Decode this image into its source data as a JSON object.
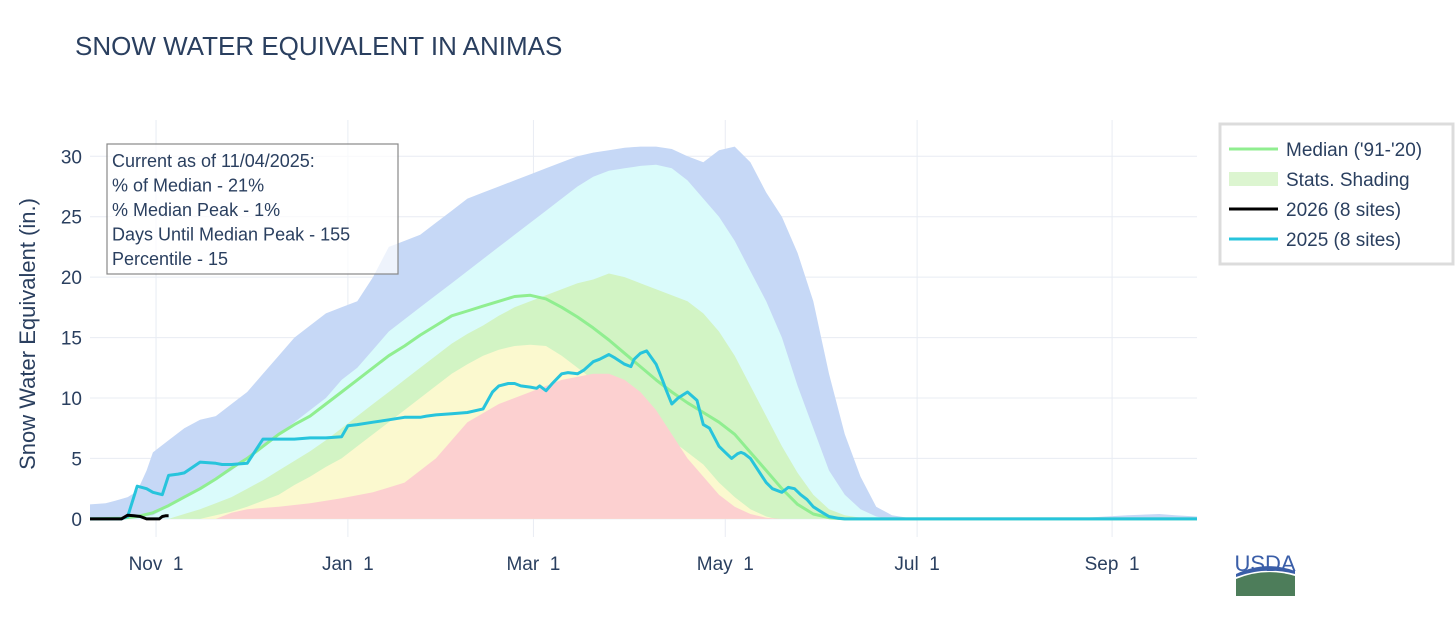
{
  "chart_data": {
    "type": "area",
    "title": "SNOW WATER EQUIVALENT IN ANIMAS",
    "ylabel": "Snow Water Equivalent (in.)",
    "xlabel": "",
    "x_unit": "day of water year (Oct 1 = 0)",
    "xlim": [
      10,
      362
    ],
    "ylim": [
      -1.5,
      33
    ],
    "x_ticks": [
      {
        "label": "Nov  1",
        "x": 31
      },
      {
        "label": "Jan  1",
        "x": 92
      },
      {
        "label": "Mar  1",
        "x": 151
      },
      {
        "label": "May  1",
        "x": 212
      },
      {
        "label": "Jul  1",
        "x": 273
      },
      {
        "label": "Sep  1",
        "x": 335
      }
    ],
    "y_ticks": [
      0,
      5,
      10,
      15,
      20,
      25,
      30
    ],
    "annotation": [
      "Current as of 11/04/2025:",
      "% of Median - 21%",
      "% Median Peak - 1%",
      "Days Until Median Peak - 155",
      "Percentile - 15"
    ],
    "legend": [
      {
        "label": "Median ('91-'20)",
        "kind": "line",
        "color": "#90ee90"
      },
      {
        "label": "Stats. Shading",
        "kind": "fill",
        "color": "#dcf5d0"
      },
      {
        "label": "2026 (8 sites)",
        "kind": "line",
        "color": "#000000"
      },
      {
        "label": "2025 (8 sites)",
        "kind": "line",
        "color": "#27c4dc"
      }
    ],
    "logo_text": "USDA",
    "colors": {
      "band_blue": "#c6d8f6",
      "band_cyan": "#dafbfb",
      "band_green": "#d2f4c4",
      "band_yellow": "#fbf9cf",
      "band_red": "#fcd0d0",
      "grid": "#e8ecf3",
      "axis_text": "#2a3f5f",
      "title": "#2a3f5f",
      "logo_blue": "#3a5ea8",
      "logo_green": "#4d7d5a"
    },
    "series": {
      "max": {
        "x": [
          10,
          15,
          18,
          22,
          25,
          28,
          30,
          35,
          40,
          45,
          50,
          55,
          60,
          65,
          70,
          75,
          80,
          85,
          90,
          95,
          100,
          105,
          110,
          115,
          120,
          125,
          130,
          135,
          140,
          145,
          150,
          155,
          160,
          165,
          170,
          175,
          180,
          185,
          190,
          195,
          200,
          205,
          210,
          215,
          220,
          225,
          230,
          235,
          240,
          245,
          250,
          255,
          260,
          265,
          270,
          275,
          280,
          290,
          300,
          320,
          340,
          350,
          355,
          362
        ],
        "y": [
          1.2,
          1.3,
          1.5,
          1.8,
          2.3,
          4.0,
          5.5,
          6.5,
          7.5,
          8.2,
          8.5,
          9.5,
          10.5,
          12.0,
          13.5,
          15.0,
          16.0,
          17.0,
          17.5,
          18.0,
          20.0,
          22.5,
          23.0,
          23.5,
          24.5,
          25.5,
          26.5,
          27.0,
          27.5,
          28.0,
          28.5,
          29.0,
          29.5,
          30.0,
          30.3,
          30.5,
          30.7,
          30.8,
          30.8,
          30.6,
          30.0,
          29.5,
          30.5,
          30.8,
          29.5,
          27.0,
          25.0,
          22.0,
          18.0,
          12.0,
          7.0,
          3.5,
          1.0,
          0.3,
          0.1,
          0.05,
          0,
          0,
          0,
          0,
          0.3,
          0.4,
          0.3,
          0.2
        ]
      },
      "p90": {
        "x": [
          10,
          25,
          30,
          35,
          40,
          45,
          50,
          55,
          60,
          65,
          70,
          75,
          80,
          85,
          90,
          95,
          100,
          105,
          110,
          115,
          120,
          125,
          130,
          135,
          140,
          145,
          150,
          155,
          160,
          165,
          170,
          175,
          180,
          185,
          190,
          195,
          200,
          205,
          210,
          215,
          220,
          225,
          230,
          235,
          240,
          245,
          250,
          255,
          260,
          262,
          265,
          270,
          280,
          362
        ],
        "y": [
          0,
          0.1,
          0.3,
          1.0,
          1.8,
          2.5,
          3.2,
          4.0,
          5.0,
          6.0,
          7.0,
          8.0,
          9.0,
          10.0,
          11.5,
          12.5,
          14.0,
          15.5,
          16.5,
          17.5,
          18.5,
          19.5,
          20.5,
          21.5,
          22.5,
          23.5,
          24.5,
          25.5,
          26.5,
          27.5,
          28.3,
          28.8,
          29.0,
          29.2,
          29.3,
          29.0,
          28.0,
          26.5,
          25.0,
          23.0,
          20.5,
          18.0,
          15.0,
          11.0,
          7.5,
          4.0,
          2.0,
          0.8,
          0.2,
          0.1,
          0,
          0,
          0,
          0
        ]
      },
      "p70": {
        "x": [
          10,
          35,
          40,
          45,
          50,
          55,
          60,
          65,
          70,
          75,
          80,
          85,
          90,
          95,
          100,
          105,
          110,
          115,
          120,
          125,
          130,
          135,
          140,
          145,
          150,
          155,
          160,
          165,
          170,
          175,
          180,
          185,
          190,
          195,
          200,
          205,
          210,
          215,
          220,
          225,
          230,
          235,
          240,
          245,
          250,
          255,
          258,
          362
        ],
        "y": [
          0,
          0,
          0.4,
          0.8,
          1.3,
          1.8,
          2.5,
          3.2,
          4.0,
          4.8,
          5.6,
          6.5,
          7.5,
          8.5,
          9.5,
          10.5,
          11.5,
          12.5,
          13.5,
          14.5,
          15.3,
          16.0,
          16.8,
          17.5,
          18.0,
          18.5,
          19.0,
          19.5,
          19.8,
          20.3,
          20.0,
          19.5,
          19.0,
          18.5,
          18.0,
          17.0,
          15.5,
          13.5,
          11.0,
          8.5,
          6.0,
          3.8,
          2.0,
          0.8,
          0.3,
          0.1,
          0,
          0
        ]
      },
      "median": {
        "x": [
          10,
          20,
          25,
          30,
          35,
          40,
          45,
          50,
          55,
          60,
          65,
          70,
          75,
          80,
          85,
          90,
          95,
          100,
          105,
          110,
          115,
          120,
          125,
          130,
          135,
          140,
          145,
          150,
          155,
          160,
          165,
          170,
          175,
          180,
          185,
          190,
          195,
          200,
          205,
          210,
          215,
          220,
          225,
          230,
          235,
          240,
          245,
          250,
          255,
          362
        ],
        "y": [
          0,
          0.05,
          0.2,
          0.5,
          1.1,
          1.8,
          2.5,
          3.3,
          4.2,
          5.0,
          6.0,
          7.0,
          7.8,
          8.5,
          9.5,
          10.5,
          11.5,
          12.5,
          13.5,
          14.3,
          15.2,
          16.0,
          16.8,
          17.2,
          17.6,
          18.0,
          18.4,
          18.5,
          18.2,
          17.5,
          16.7,
          15.8,
          14.8,
          13.7,
          12.6,
          11.5,
          10.5,
          9.6,
          8.8,
          8.0,
          7.0,
          5.5,
          4.0,
          2.5,
          1.2,
          0.4,
          0.1,
          0,
          0,
          0
        ]
      },
      "p30": {
        "x": [
          10,
          45,
          50,
          55,
          60,
          65,
          70,
          75,
          80,
          85,
          90,
          95,
          100,
          105,
          110,
          115,
          120,
          125,
          130,
          135,
          140,
          145,
          150,
          155,
          160,
          165,
          170,
          175,
          180,
          185,
          190,
          195,
          200,
          205,
          210,
          215,
          220,
          225,
          228,
          362
        ],
        "y": [
          0,
          0,
          0.3,
          0.6,
          1.0,
          1.5,
          2.0,
          2.8,
          3.5,
          4.3,
          5.0,
          6.0,
          7.0,
          8.0,
          9.0,
          10.0,
          11.0,
          12.0,
          12.8,
          13.5,
          14.0,
          14.3,
          14.4,
          14.3,
          13.5,
          12.5,
          11.5,
          10.5,
          9.5,
          8.5,
          7.5,
          6.5,
          5.5,
          4.5,
          3.0,
          1.8,
          0.8,
          0.2,
          0,
          0
        ]
      },
      "min": {
        "x": [
          10,
          50,
          55,
          60,
          70,
          80,
          90,
          100,
          110,
          120,
          130,
          140,
          150,
          160,
          170,
          175,
          180,
          185,
          190,
          195,
          200,
          205,
          210,
          215,
          220,
          225,
          230,
          362
        ],
        "y": [
          0,
          0,
          0.5,
          0.8,
          1.0,
          1.3,
          1.7,
          2.2,
          3.0,
          5.0,
          8.0,
          9.5,
          10.5,
          11.5,
          12.0,
          12.0,
          11.5,
          10.5,
          9.0,
          7.0,
          5.0,
          3.5,
          2.0,
          1.0,
          0.4,
          0.1,
          0,
          0
        ]
      },
      "year_2025": {
        "x": [
          10,
          15,
          20,
          22,
          25,
          28,
          30,
          33,
          35,
          38,
          40,
          45,
          50,
          52,
          55,
          60,
          65,
          70,
          75,
          80,
          85,
          90,
          92,
          95,
          100,
          105,
          110,
          115,
          117,
          120,
          125,
          130,
          135,
          138,
          140,
          143,
          145,
          147,
          150,
          152,
          153,
          155,
          157,
          160,
          162,
          165,
          167,
          170,
          172,
          175,
          177,
          180,
          182,
          183,
          185,
          187,
          190,
          192,
          193,
          195,
          197,
          200,
          203,
          205,
          207,
          210,
          212,
          214,
          215,
          216,
          217,
          218,
          220,
          222,
          225,
          227,
          230,
          232,
          234,
          236,
          238,
          240,
          243,
          245,
          248,
          250,
          255,
          260,
          362
        ],
        "y": [
          0,
          0,
          0,
          0.2,
          2.7,
          2.5,
          2.2,
          2.0,
          3.6,
          3.7,
          3.8,
          4.7,
          4.6,
          4.5,
          4.5,
          4.6,
          6.6,
          6.6,
          6.6,
          6.7,
          6.7,
          6.8,
          7.7,
          7.8,
          8.0,
          8.2,
          8.4,
          8.4,
          8.5,
          8.6,
          8.7,
          8.8,
          9.1,
          10.5,
          11.0,
          11.2,
          11.2,
          11.0,
          10.9,
          10.8,
          11.0,
          10.6,
          11.2,
          12.0,
          12.1,
          12.0,
          12.3,
          13.0,
          13.2,
          13.6,
          13.3,
          12.8,
          12.6,
          13.2,
          13.7,
          13.9,
          12.8,
          11.5,
          10.8,
          9.5,
          10.0,
          10.5,
          9.8,
          7.8,
          7.5,
          6.0,
          5.5,
          5.0,
          5.2,
          5.4,
          5.5,
          5.4,
          5.0,
          4.2,
          3.0,
          2.5,
          2.2,
          2.6,
          2.5,
          2.0,
          1.6,
          1.0,
          0.5,
          0.2,
          0.05,
          0,
          0,
          0,
          0
        ]
      },
      "year_2026": {
        "x": [
          10,
          15,
          20,
          22,
          24,
          26,
          28,
          30,
          32,
          33,
          34,
          35
        ],
        "y": [
          0,
          0,
          0,
          0.3,
          0.25,
          0.2,
          0,
          0,
          0,
          0.2,
          0.25,
          0.25
        ]
      }
    }
  }
}
